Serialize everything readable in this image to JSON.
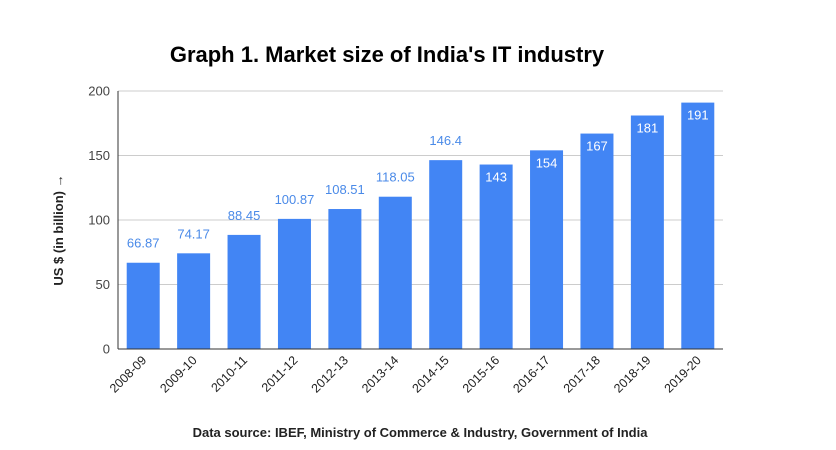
{
  "chart_data": {
    "type": "bar",
    "title": "Graph 1. Market size of India's IT industry",
    "ylabel": "US $ (in billion) →",
    "xlabel": "",
    "source": "Data source: IBEF, Ministry of Commerce & Industry, Government of India",
    "categories": [
      "2008-09",
      "2009-10",
      "2010-11",
      "2011-12",
      "2012-13",
      "2013-14",
      "2014-15",
      "2015-16",
      "2016-17",
      "2017-18",
      "2018-19",
      "2019-20"
    ],
    "values": [
      66.87,
      74.17,
      88.45,
      100.87,
      108.51,
      118.05,
      146.4,
      143,
      154,
      167,
      181,
      191
    ],
    "data_labels": [
      "66.87",
      "74.17",
      "88.45",
      "100.87",
      "108.51",
      "118.05",
      "146.4",
      "143",
      "154",
      "167",
      "181",
      "191"
    ],
    "ylim": [
      0,
      200
    ],
    "yticks": [
      "0",
      "50",
      "100",
      "150",
      "200"
    ],
    "grid": true,
    "legend": "none",
    "colors": {
      "bar": "#4285f4",
      "label_outside": "#4a8ae8",
      "label_inside": "#ffffff"
    }
  }
}
